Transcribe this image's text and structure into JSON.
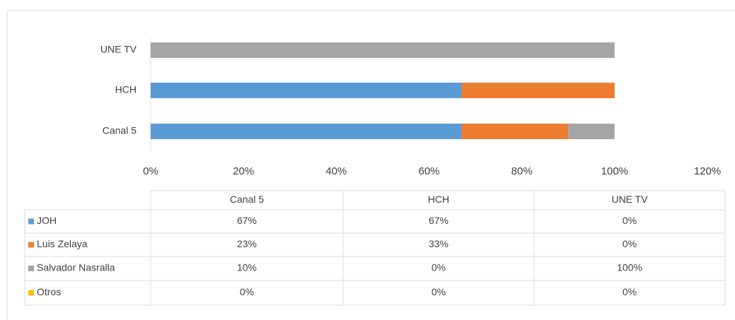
{
  "chart_data": {
    "type": "stacked_bar_horizontal",
    "categories": [
      "Canal 5",
      "HCH",
      "UNE TV"
    ],
    "series": [
      {
        "name": "JOH",
        "color": "#5b9bd5",
        "values": [
          67,
          67,
          0
        ],
        "value_labels": [
          "67%",
          "67%",
          "0%"
        ]
      },
      {
        "name": "Luis Zelaya",
        "color": "#ed7d31",
        "values": [
          23,
          33,
          0
        ],
        "value_labels": [
          "23%",
          "33%",
          "0%"
        ]
      },
      {
        "name": "Salvador Nasralla",
        "color": "#a5a5a5",
        "values": [
          10,
          0,
          100
        ],
        "value_labels": [
          "10%",
          "0%",
          "100%"
        ]
      },
      {
        "name": "Otros",
        "color": "#ffc000",
        "values": [
          0,
          0,
          0
        ],
        "value_labels": [
          "0%",
          "0%",
          "0%"
        ]
      }
    ],
    "xlim": [
      0,
      120
    ],
    "xticks": [
      {
        "value": 0,
        "label": "0%"
      },
      {
        "value": 20,
        "label": "20%"
      },
      {
        "value": 40,
        "label": "40%"
      },
      {
        "value": 60,
        "label": "60%"
      },
      {
        "value": 80,
        "label": "80%"
      },
      {
        "value": 100,
        "label": "100%"
      },
      {
        "value": 120,
        "label": "120%"
      }
    ]
  }
}
